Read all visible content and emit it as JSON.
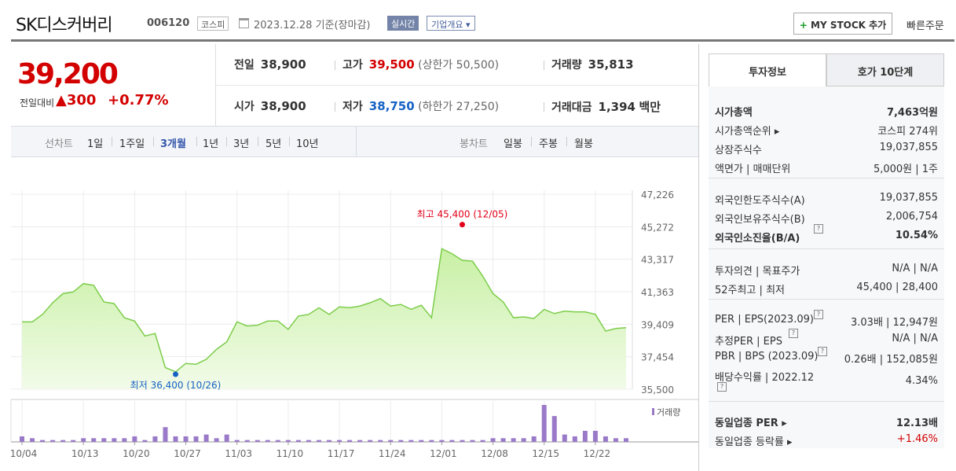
{
  "header": {
    "company": "SK디스커버리",
    "code": "006120",
    "market": "코스피",
    "date_text": "2023.12.28 기준(장마감)",
    "realtime_label": "실시간",
    "overview_label": "기업개요",
    "mystock_label": "MY STOCK 추가",
    "quick_order_label": "빠른주문"
  },
  "price": {
    "current": "39,200",
    "change_label": "전일대비",
    "change_value": "▲300",
    "change_pct": "+0.77%"
  },
  "quote": {
    "prev_close_label": "전일",
    "prev_close": "38,900",
    "high_label": "고가",
    "high": "39,500",
    "upper_limit": "(상한가 50,500)",
    "volume_label": "거래량",
    "volume": "35,813",
    "open_label": "시가",
    "open": "38,900",
    "low_label": "저가",
    "low": "38,750",
    "lower_limit": "(하한가 27,250)",
    "amount_label": "거래대금",
    "amount": "1,394",
    "amount_unit": "백만"
  },
  "period_bar": {
    "line_chart_label": "선차트",
    "periods": [
      "1일",
      "1주일",
      "3개월",
      "1년",
      "3년",
      "5년",
      "10년"
    ],
    "active_period": "3개월",
    "candle_label": "봉차트",
    "candles": [
      "일봉",
      "주봉",
      "월봉"
    ]
  },
  "chart_data": {
    "type": "area",
    "x": [
      "10/04",
      "10/05",
      "10/06",
      "10/10",
      "10/11",
      "10/12",
      "10/13",
      "10/16",
      "10/17",
      "10/18",
      "10/19",
      "10/20",
      "10/23",
      "10/24",
      "10/25",
      "10/26",
      "10/27",
      "10/30",
      "10/31",
      "11/01",
      "11/02",
      "11/03",
      "11/06",
      "11/07",
      "11/08",
      "11/09",
      "11/10",
      "11/13",
      "11/14",
      "11/15",
      "11/16",
      "11/17",
      "11/20",
      "11/21",
      "11/22",
      "11/23",
      "11/24",
      "11/27",
      "11/28",
      "11/29",
      "11/30",
      "12/01",
      "12/04",
      "12/05",
      "12/06",
      "12/07",
      "12/08",
      "12/11",
      "12/12",
      "12/13",
      "12/14",
      "12/15",
      "12/18",
      "12/19",
      "12/20",
      "12/21",
      "12/22",
      "12/26",
      "12/27",
      "12/28"
    ],
    "series": [
      {
        "values": [
          39550,
          39550,
          40000,
          40700,
          41250,
          41350,
          41850,
          41750,
          40750,
          40650,
          39800,
          39600,
          38700,
          38850,
          36800,
          36550,
          37050,
          37000,
          37300,
          37900,
          38350,
          39550,
          39300,
          39350,
          39600,
          39600,
          39100,
          39900,
          40000,
          40400,
          40000,
          40450,
          40400,
          40500,
          40700,
          40950,
          40500,
          40600,
          40300,
          40550,
          39800,
          43950,
          43650,
          43250,
          43200,
          42300,
          41250,
          40750,
          39800,
          39850,
          39750,
          40300,
          40050,
          40200,
          40150,
          40150,
          40000,
          39000,
          39150,
          39200
        ]
      }
    ],
    "volumes": [
      3,
      2,
      1,
      1,
      1,
      1,
      2,
      2,
      2,
      2,
      2,
      3,
      1,
      3,
      8,
      3,
      3,
      3,
      4,
      2,
      4,
      1,
      1,
      1,
      1,
      1,
      1,
      1,
      1,
      1,
      1,
      1,
      1,
      1,
      1,
      1,
      1,
      1,
      1,
      1,
      1,
      1,
      1,
      1,
      1,
      1,
      2,
      2,
      2,
      2,
      3,
      20,
      14,
      4,
      3,
      6,
      6,
      3,
      2,
      2
    ],
    "y_ticks": [
      "47,226",
      "45,272",
      "43,317",
      "41,363",
      "39,409",
      "37,454",
      "35,500"
    ],
    "ylim": [
      35500,
      47226
    ],
    "x_ticks": [
      "10/04",
      "10/13",
      "10/20",
      "10/27",
      "11/03",
      "11/10",
      "11/17",
      "11/24",
      "12/01",
      "12/08",
      "12/15",
      "12/22"
    ],
    "high_annotation": "최고 45,400 (12/05)",
    "low_annotation": "최저 36,400 (10/26)",
    "high_value": 45400,
    "high_index": 43,
    "low_value": 36400,
    "low_index": 15,
    "volume_legend": "거래량",
    "line_color": "#7ccd4a",
    "fill_color": "#c8f0a4",
    "volume_color": "#9a7ac8",
    "grid": true
  },
  "right_panel": {
    "tabs": [
      "투자정보",
      "호가 10단계"
    ],
    "g1": [
      {
        "label": "시가총액",
        "value": "7,463억원",
        "bold": true
      },
      {
        "label": "시가총액순위 ▸",
        "value": "코스피 274위"
      },
      {
        "label": "상장주식수",
        "value": "19,037,855"
      },
      {
        "label": "액면가 | 매매단위",
        "value": "5,000원 | 1주"
      }
    ],
    "g2": [
      {
        "label": "외국인한도주식수(A)",
        "value": "19,037,855"
      },
      {
        "label": "외국인보유주식수(B)",
        "value": "2,006,754"
      },
      {
        "label": "외국인소진율(B/A)",
        "value": "10.54%",
        "bold": true
      }
    ],
    "g3": [
      {
        "label": "투자의견 | 목표주가",
        "value": "N/A | N/A"
      },
      {
        "label": "52주최고 | 최저",
        "value": "45,400 | 28,400"
      }
    ],
    "g4": [
      {
        "label": "PER | EPS(2023.09)",
        "value": "3.03배 | 12,947원"
      },
      {
        "label": "추정PER | EPS",
        "value": "N/A | N/A"
      },
      {
        "label": "PBR | BPS (2023.09)",
        "value": "0.26배 | 152,085원"
      },
      {
        "label": "배당수익률 | 2022.12",
        "value": "4.34%"
      }
    ],
    "g5": [
      {
        "label": "동일업종 PER ▸",
        "value": "12.13배",
        "bold": true
      },
      {
        "label": "동일업종 등락률 ▸",
        "value": "+1.46%",
        "red": true
      }
    ],
    "hint_glyph": "?"
  }
}
